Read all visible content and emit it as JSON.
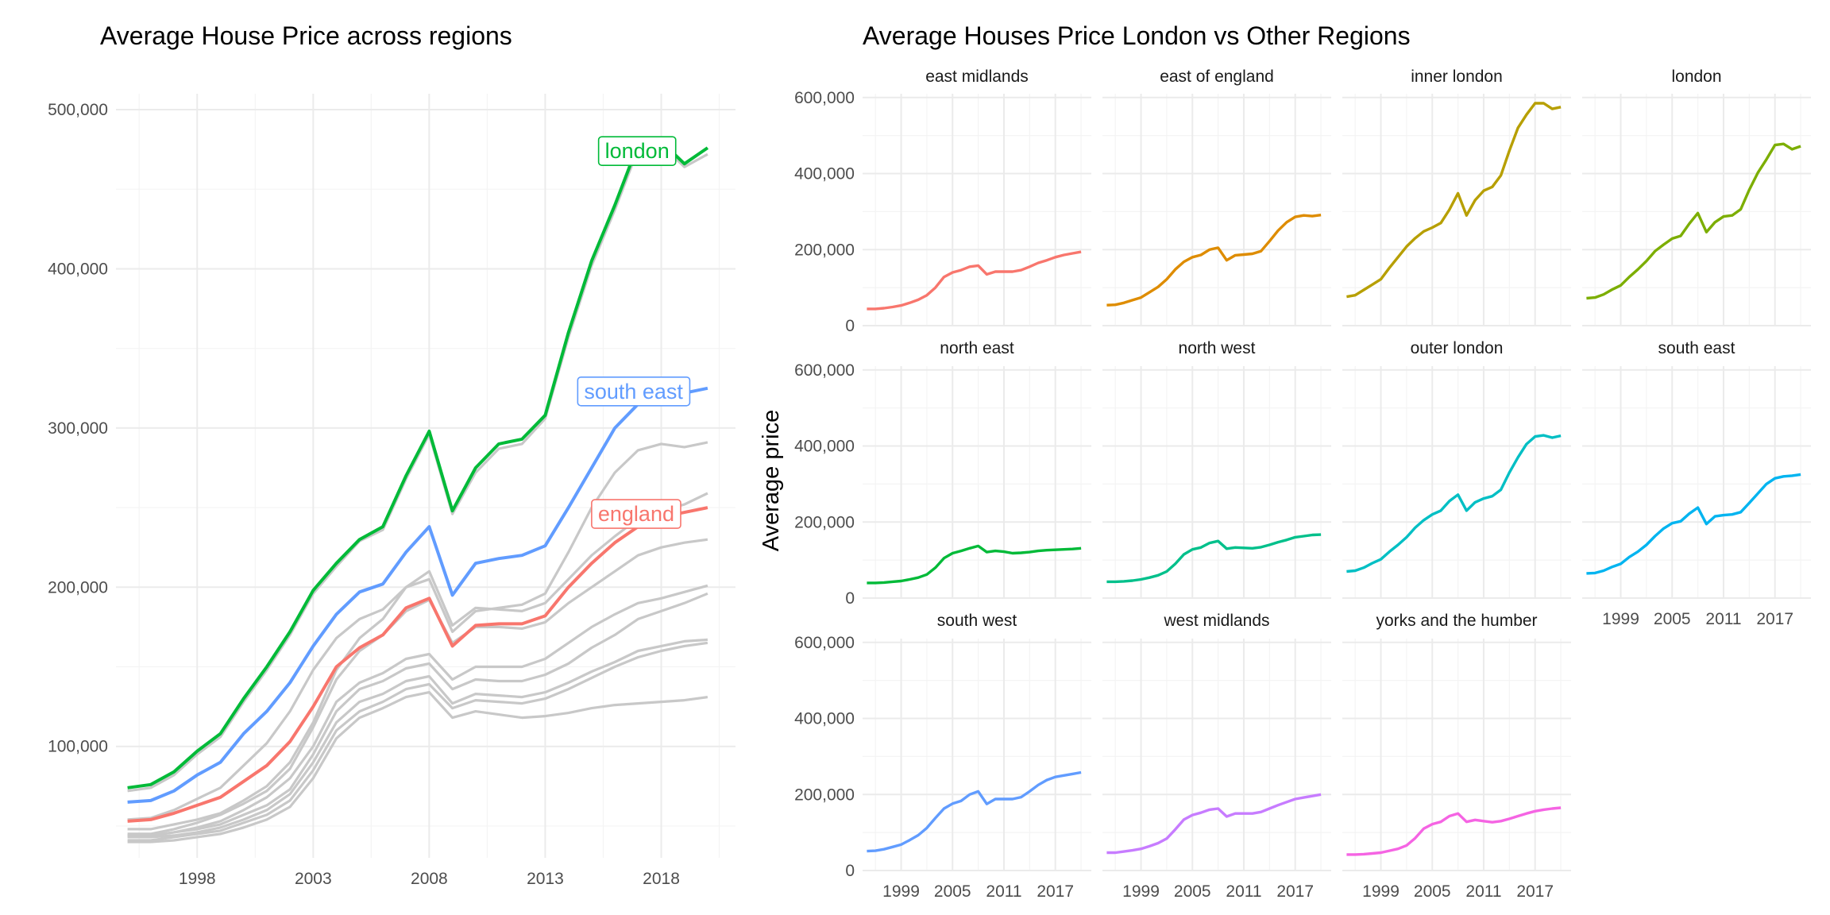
{
  "chart_data": [
    {
      "type": "line",
      "title": "Average House Price across regions",
      "xlabel": "",
      "ylabel": "",
      "xlim": [
        1994.5,
        2021.2
      ],
      "ylim": [
        30000,
        510000
      ],
      "x_ticks": [
        1998,
        2003,
        2008,
        2013,
        2018
      ],
      "x_tick_labels": [
        "1998",
        "2003",
        "2008",
        "2013",
        "2018"
      ],
      "y_ticks": [
        100000,
        200000,
        300000,
        400000,
        500000
      ],
      "y_tick_labels": [
        "100,000",
        "200,000",
        "300,000",
        "400,000",
        "500,000"
      ],
      "grid": true,
      "legend": "none",
      "x": [
        1995,
        1996,
        1997,
        1998,
        1999,
        2000,
        2001,
        2002,
        2003,
        2004,
        2005,
        2006,
        2007,
        2008,
        2009,
        2010,
        2011,
        2012,
        2013,
        2014,
        2015,
        2016,
        2017,
        2018,
        2019,
        2020
      ],
      "highlight_series": [
        {
          "name": "london",
          "label": "london",
          "color": "#00ba38",
          "values": [
            74000,
            76000,
            84000,
            97000,
            108000,
            130000,
            150000,
            172000,
            198000,
            215000,
            230000,
            238000,
            270000,
            298000,
            248000,
            275000,
            290000,
            293000,
            308000,
            360000,
            405000,
            440000,
            478000,
            480000,
            466000,
            476000
          ]
        },
        {
          "name": "south east",
          "label": "south east",
          "color": "#619cff",
          "values": [
            65000,
            66000,
            72000,
            82000,
            90000,
            108000,
            122000,
            140000,
            163000,
            183000,
            197000,
            202000,
            222000,
            238000,
            195000,
            215000,
            218000,
            220000,
            226000,
            250000,
            275000,
            300000,
            315000,
            320000,
            322000,
            325000
          ]
        },
        {
          "name": "england",
          "label": "england",
          "color": "#f8766d",
          "values": [
            53000,
            54000,
            58000,
            63000,
            68000,
            78000,
            88000,
            103000,
            125000,
            150000,
            162000,
            170000,
            187000,
            193000,
            163000,
            176000,
            177000,
            177000,
            182000,
            200000,
            215000,
            228000,
            238000,
            244000,
            247000,
            250000
          ]
        }
      ],
      "background_series": [
        {
          "values": [
            72000,
            74000,
            82000,
            95000,
            106000,
            128000,
            148000,
            170000,
            196000,
            213000,
            229000,
            236000,
            268000,
            296000,
            246000,
            272000,
            287000,
            290000,
            306000,
            357000,
            402000,
            437000,
            475000,
            478000,
            464000,
            472000
          ]
        },
        {
          "values": [
            54000,
            55000,
            60000,
            67000,
            74000,
            88000,
            102000,
            122000,
            148000,
            168000,
            180000,
            186000,
            200000,
            205000,
            172000,
            185000,
            187000,
            189000,
            196000,
            222000,
            250000,
            272000,
            286000,
            290000,
            288000,
            291000
          ]
        },
        {
          "values": [
            48000,
            48000,
            51000,
            54000,
            58000,
            66000,
            75000,
            90000,
            115000,
            148000,
            168000,
            180000,
            200000,
            210000,
            176000,
            187000,
            186000,
            185000,
            190000,
            205000,
            220000,
            232000,
            243000,
            248000,
            252000,
            259000
          ]
        },
        {
          "values": [
            45000,
            45000,
            48000,
            52000,
            57000,
            64000,
            72000,
            86000,
            112000,
            142000,
            160000,
            170000,
            185000,
            192000,
            165000,
            175000,
            175000,
            174000,
            178000,
            190000,
            200000,
            210000,
            220000,
            225000,
            228000,
            230000
          ]
        },
        {
          "values": [
            44000,
            44000,
            46000,
            49000,
            53000,
            60000,
            68000,
            80000,
            100000,
            128000,
            140000,
            146000,
            155000,
            158000,
            142000,
            150000,
            150000,
            150000,
            155000,
            165000,
            175000,
            183000,
            190000,
            193000,
            197000,
            201000
          ]
        },
        {
          "values": [
            44000,
            44000,
            46000,
            48000,
            51000,
            57000,
            63000,
            73000,
            95000,
            122000,
            136000,
            141000,
            149000,
            152000,
            136000,
            142000,
            141000,
            141000,
            145000,
            152000,
            162000,
            170000,
            180000,
            185000,
            190000,
            196000
          ]
        },
        {
          "values": [
            43000,
            43000,
            44000,
            46000,
            49000,
            54000,
            60000,
            70000,
            90000,
            115000,
            128000,
            133000,
            141000,
            144000,
            127000,
            133000,
            132000,
            131000,
            134000,
            140000,
            147000,
            153000,
            160000,
            163000,
            166000,
            167000
          ]
        },
        {
          "values": [
            41000,
            41000,
            43000,
            45000,
            47000,
            52000,
            57000,
            66000,
            85000,
            110000,
            122000,
            128000,
            136000,
            139000,
            124000,
            129000,
            128000,
            127000,
            130000,
            136000,
            143000,
            150000,
            156000,
            160000,
            163000,
            165000
          ]
        },
        {
          "values": [
            40000,
            40000,
            41000,
            43000,
            45000,
            49000,
            54000,
            62000,
            80000,
            105000,
            118000,
            124000,
            131000,
            134000,
            118000,
            122000,
            120000,
            118000,
            119000,
            121000,
            124000,
            126000,
            127000,
            128000,
            129000,
            131000
          ]
        }
      ]
    },
    {
      "type": "line",
      "title": "Average Houses Price London vs Other Regions",
      "xlabel": "",
      "ylabel": "Average price",
      "layout": "facets 4 columns x 3 rows",
      "xlim": [
        1994.5,
        2021.2
      ],
      "ylim": [
        0,
        610000
      ],
      "x_ticks": [
        1999,
        2005,
        2011,
        2017
      ],
      "x_tick_labels": [
        "1999",
        "2005",
        "2011",
        "2017"
      ],
      "y_ticks": [
        0,
        200000,
        400000,
        600000
      ],
      "y_tick_labels": [
        "0",
        "200,000",
        "400,000",
        "600,000"
      ],
      "grid": true,
      "legend": "none",
      "x": [
        1995,
        1996,
        1997,
        1998,
        1999,
        2000,
        2001,
        2002,
        2003,
        2004,
        2005,
        2006,
        2007,
        2008,
        2009,
        2010,
        2011,
        2012,
        2013,
        2014,
        2015,
        2016,
        2017,
        2018,
        2019,
        2020
      ],
      "facets": [
        {
          "name": "east midlands",
          "color": "#f8766d",
          "values": [
            44000,
            44000,
            46000,
            49000,
            53000,
            60000,
            68000,
            80000,
            100000,
            128000,
            140000,
            146000,
            155000,
            158000,
            135000,
            142000,
            142000,
            142000,
            146000,
            155000,
            165000,
            172000,
            180000,
            186000,
            190000,
            194000
          ]
        },
        {
          "name": "east of england",
          "color": "#de8c00",
          "values": [
            54000,
            55000,
            60000,
            67000,
            74000,
            88000,
            102000,
            122000,
            148000,
            168000,
            180000,
            186000,
            200000,
            205000,
            172000,
            185000,
            187000,
            189000,
            196000,
            222000,
            250000,
            272000,
            286000,
            290000,
            288000,
            291000
          ]
        },
        {
          "name": "inner london",
          "color": "#b79f00",
          "values": [
            76000,
            80000,
            94000,
            108000,
            122000,
            152000,
            180000,
            208000,
            230000,
            248000,
            258000,
            270000,
            305000,
            348000,
            290000,
            330000,
            355000,
            365000,
            395000,
            460000,
            520000,
            555000,
            585000,
            585000,
            570000,
            575000
          ]
        },
        {
          "name": "london",
          "color": "#7cae00",
          "values": [
            72000,
            74000,
            82000,
            95000,
            106000,
            128000,
            148000,
            170000,
            196000,
            213000,
            229000,
            236000,
            268000,
            296000,
            246000,
            272000,
            287000,
            290000,
            306000,
            357000,
            402000,
            437000,
            475000,
            478000,
            464000,
            472000
          ]
        },
        {
          "name": "north east",
          "color": "#00ba38",
          "values": [
            40000,
            40000,
            41000,
            43000,
            45000,
            49000,
            54000,
            62000,
            80000,
            105000,
            118000,
            124000,
            131000,
            137000,
            121000,
            124000,
            122000,
            118000,
            119000,
            121000,
            124000,
            126000,
            127000,
            128000,
            129000,
            131000
          ]
        },
        {
          "name": "north west",
          "color": "#00c08b",
          "values": [
            43000,
            43000,
            44000,
            46000,
            49000,
            54000,
            60000,
            70000,
            90000,
            115000,
            128000,
            133000,
            145000,
            150000,
            130000,
            133000,
            132000,
            131000,
            134000,
            140000,
            147000,
            153000,
            160000,
            163000,
            166000,
            167000
          ]
        },
        {
          "name": "outer london",
          "color": "#00bfc4",
          "values": [
            70000,
            72000,
            80000,
            92000,
            102000,
            122000,
            140000,
            160000,
            185000,
            205000,
            220000,
            230000,
            255000,
            272000,
            230000,
            252000,
            262000,
            268000,
            285000,
            330000,
            370000,
            405000,
            425000,
            428000,
            422000,
            427000
          ]
        },
        {
          "name": "south east",
          "color": "#00b4f0",
          "values": [
            65000,
            66000,
            72000,
            82000,
            90000,
            108000,
            122000,
            140000,
            163000,
            183000,
            197000,
            202000,
            222000,
            238000,
            195000,
            215000,
            218000,
            220000,
            226000,
            250000,
            275000,
            300000,
            315000,
            320000,
            322000,
            325000
          ]
        },
        {
          "name": "south west",
          "color": "#619cff",
          "values": [
            51000,
            52000,
            56000,
            62000,
            68000,
            80000,
            93000,
            112000,
            138000,
            163000,
            176000,
            183000,
            200000,
            208000,
            175000,
            188000,
            188000,
            188000,
            193000,
            208000,
            225000,
            238000,
            246000,
            250000,
            254000,
            258000
          ]
        },
        {
          "name": "west midlands",
          "color": "#c77cff",
          "values": [
            47000,
            47000,
            50000,
            53000,
            57000,
            64000,
            72000,
            84000,
            108000,
            134000,
            146000,
            152000,
            160000,
            163000,
            142000,
            150000,
            150000,
            150000,
            154000,
            163000,
            172000,
            180000,
            188000,
            192000,
            196000,
            200000
          ]
        },
        {
          "name": "yorks and the humber",
          "color": "#f564e3",
          "values": [
            42000,
            42000,
            43000,
            45000,
            47000,
            52000,
            57000,
            66000,
            85000,
            110000,
            122000,
            128000,
            143000,
            150000,
            128000,
            133000,
            130000,
            127000,
            130000,
            136000,
            143000,
            150000,
            156000,
            160000,
            163000,
            165000
          ]
        }
      ]
    }
  ]
}
